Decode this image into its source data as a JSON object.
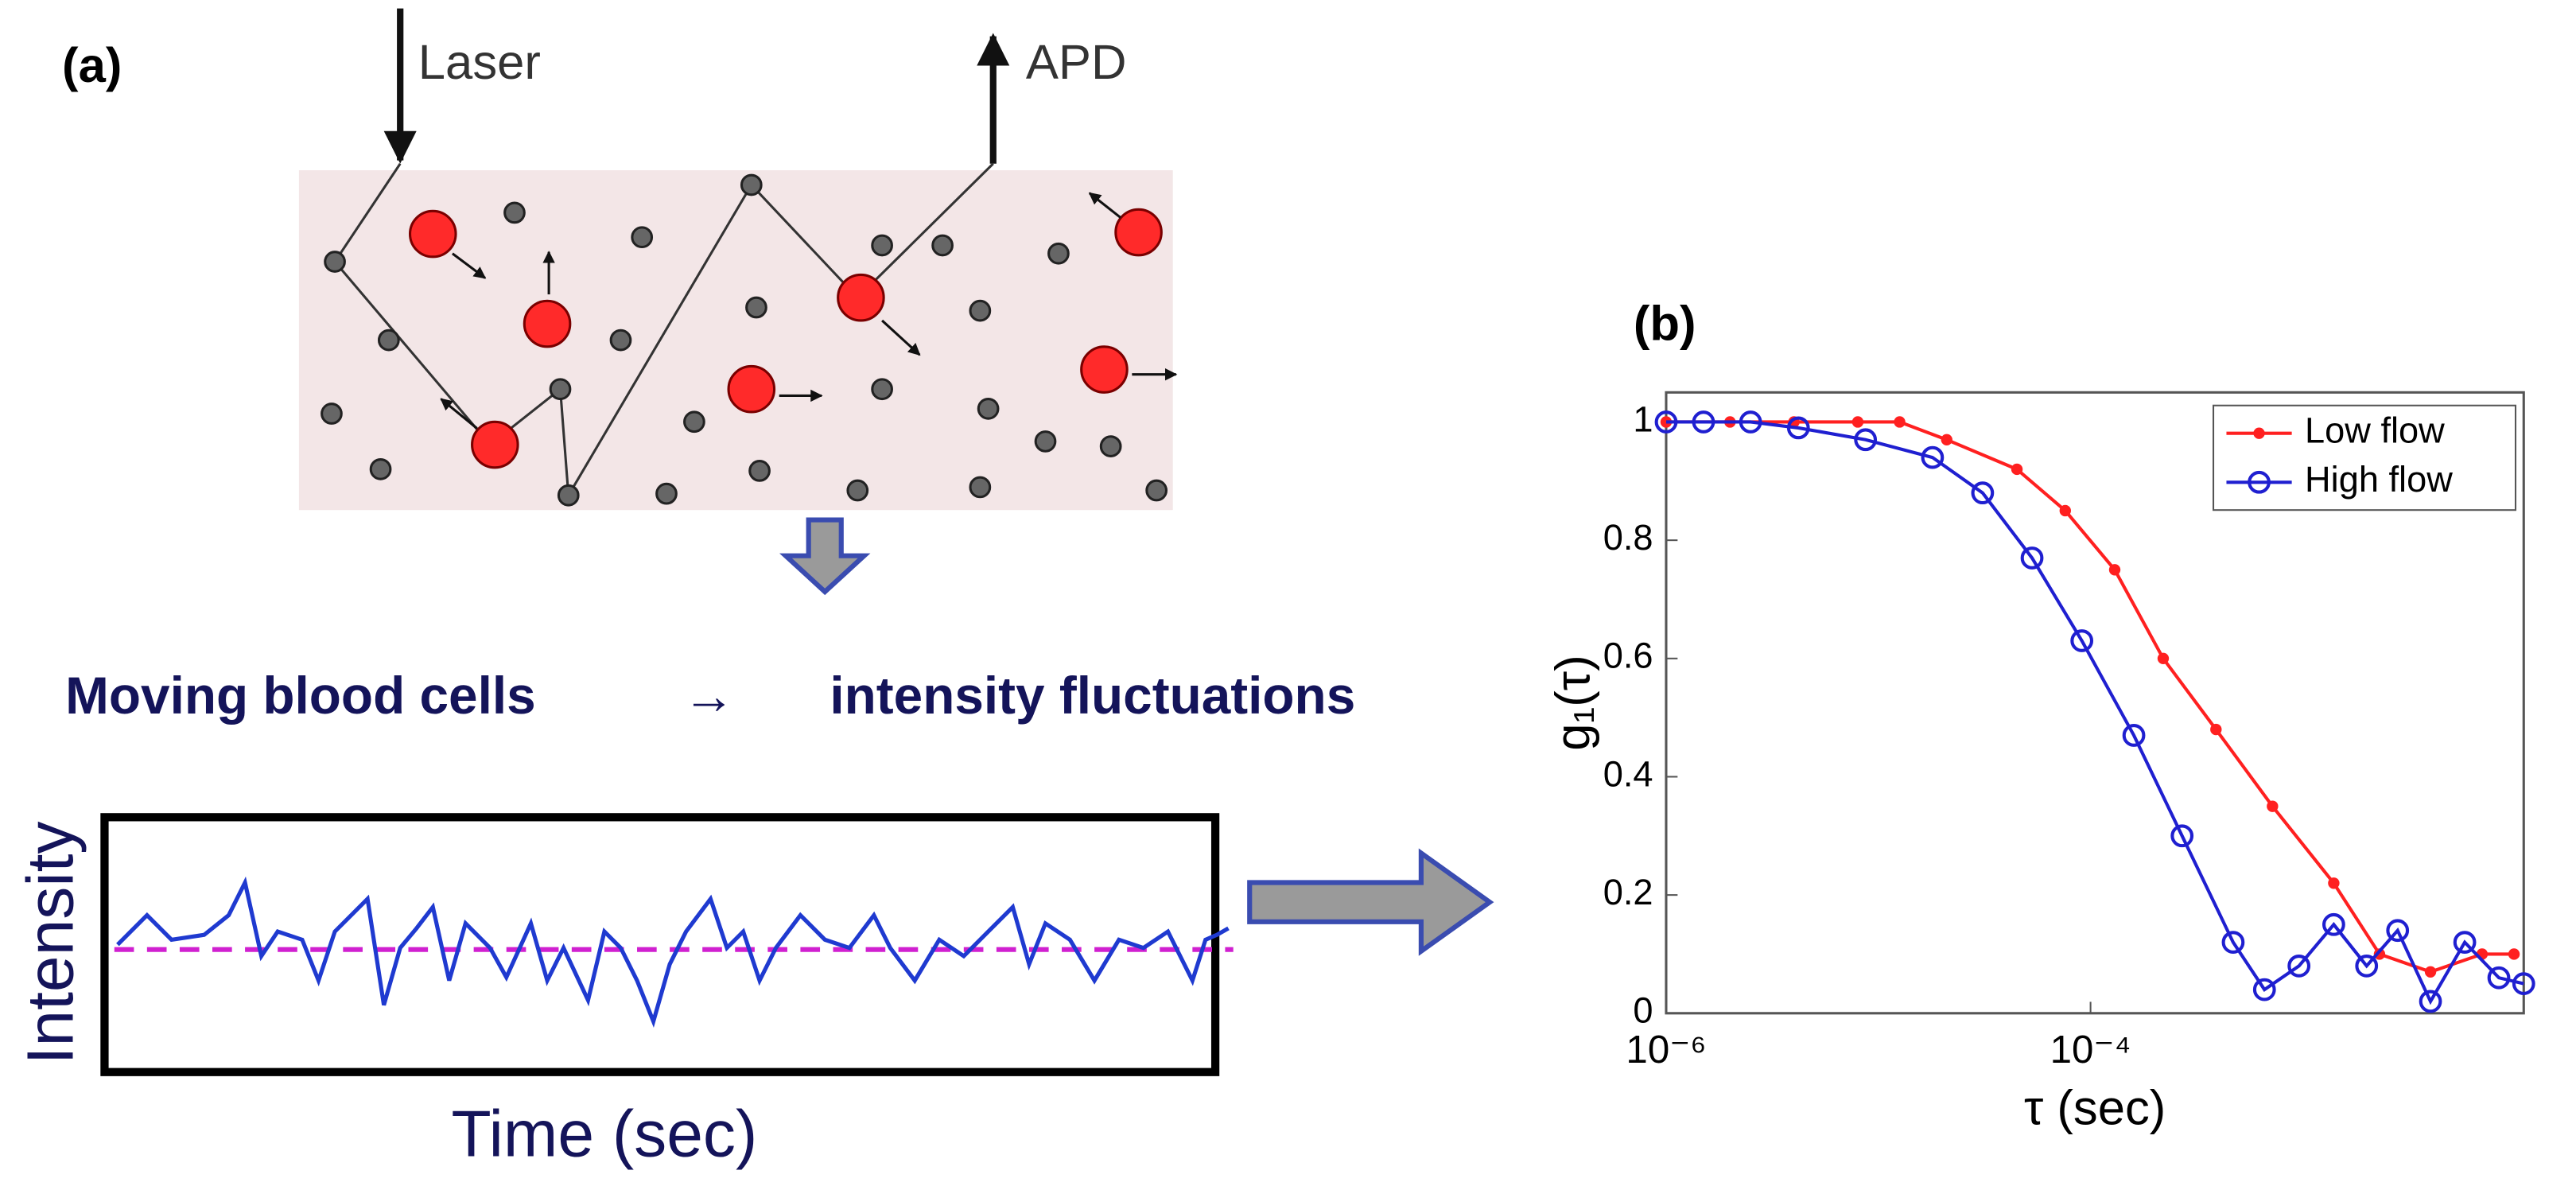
{
  "diagram": {
    "label": "(a)",
    "laser": "Laser",
    "apd": "APD",
    "caption_left": "Moving blood cells",
    "caption_arrow": "→",
    "caption_right": "intensity fluctuations",
    "trace_ylabel": "Intensity",
    "trace_xlabel": "Time (sec)"
  },
  "chart_data": {
    "type": "line",
    "label": "(b)",
    "xlabel": "τ (sec)",
    "ylabel": "g₁(τ)",
    "xscale": "log",
    "xlim": [
      1e-06,
      0.011
    ],
    "xticks": [
      {
        "value": 1e-06,
        "label": "10⁻⁶"
      },
      {
        "value": 0.0001,
        "label": "10⁻⁴"
      }
    ],
    "ylim": [
      0,
      1.05
    ],
    "yticks": [
      0,
      0.2,
      0.4,
      0.6,
      0.8,
      1
    ],
    "legend": "upper right",
    "series": [
      {
        "name": "Low flow",
        "color": "#ff2020",
        "marker": "dot",
        "x": [
          1e-06,
          2e-06,
          4e-06,
          8e-06,
          1.26e-05,
          2.1e-05,
          4.5e-05,
          7.6e-05,
          0.00013,
          0.00022,
          0.00039,
          0.00072,
          0.0014,
          0.0023,
          0.004,
          0.007,
          0.0099
        ],
        "values": [
          1,
          1,
          1,
          1,
          1,
          0.97,
          0.92,
          0.85,
          0.75,
          0.6,
          0.48,
          0.35,
          0.22,
          0.1,
          0.07,
          0.1,
          0.1
        ]
      },
      {
        "name": "High flow",
        "color": "#1f1fd0",
        "marker": "circle",
        "x": [
          1e-06,
          1.5e-06,
          2.5e-06,
          4.2e-06,
          8.7e-06,
          1.8e-05,
          3.1e-05,
          5.3e-05,
          9.1e-05,
          0.00016,
          0.00027,
          0.00047,
          0.00066,
          0.00096,
          0.0014,
          0.002,
          0.0028,
          0.004,
          0.0058,
          0.0084,
          0.011
        ],
        "values": [
          1,
          1,
          1,
          0.99,
          0.97,
          0.94,
          0.88,
          0.77,
          0.63,
          0.47,
          0.3,
          0.12,
          0.04,
          0.08,
          0.15,
          0.08,
          0.14,
          0.02,
          0.12,
          0.06,
          0.05
        ]
      }
    ]
  }
}
